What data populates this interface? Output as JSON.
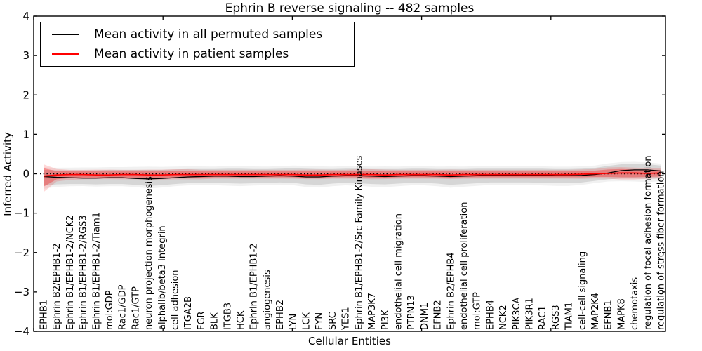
{
  "figure": {
    "title": "Ephrin B reverse signaling -- 482 samples",
    "background_color": "#ffffff",
    "accent_red": "#ff0000",
    "line_black": "#000000"
  },
  "legend": {
    "items": [
      {
        "label": "Mean activity in all permuted samples",
        "color": "#000000"
      },
      {
        "label": "Mean activity in patient samples",
        "color": "#ff0000"
      }
    ]
  },
  "chart_data": {
    "type": "line",
    "title": "Ephrin B reverse signaling -- 482 samples",
    "xlabel": "Cellular Entities",
    "ylabel": "Inferred Activity",
    "ylim": [
      -4,
      4
    ],
    "yticks": [
      4,
      3,
      2,
      1,
      0,
      -1,
      -2,
      -3,
      -4
    ],
    "grid": false,
    "legend_position": "upper left",
    "zero_line": {
      "y": 0,
      "style": "dotted",
      "color": "#000000"
    },
    "categories": [
      "EPHB1",
      "Ephrin B2/EPHB1-2",
      "Ephrin B1/EPHB1-2/NCK2",
      "Ephrin B1/EPHB1-2/RGS3",
      "Ephrin B1/EPHB1-2/Tiam1",
      "mol:GDP",
      "Rac1/GDP",
      "Rac1/GTP",
      "neuron projection morphogenesis",
      "alphaIIb/beta3 Integrin",
      "cell adhesion",
      "ITGA2B",
      "FGR",
      "BLK",
      "ITGB3",
      "HCK",
      "Ephrin B1/EPHB1-2",
      "angiogenesis",
      "EPHB2",
      "LYN",
      "LCK",
      "FYN",
      "SRC",
      "YES1",
      "Ephrin B1/EPHB1-2/Src Family Kinases",
      "MAP3K7",
      "PI3K",
      "endothelial cell migration",
      "PTPN13",
      "DNM1",
      "EFNB2",
      "Ephrin B2/EPHB4",
      "endothelial cell proliferation",
      "mol:GTP",
      "EPHB4",
      "NCK2",
      "PIK3CA",
      "PIK3R1",
      "RAC1",
      "RGS3",
      "TIAM1",
      "cell-cell signaling",
      "MAP2K4",
      "EFNB1",
      "MAPK8",
      "chemotaxis",
      "regulation of focal adhesion formation",
      "regulation of stress fiber formation"
    ],
    "series": [
      {
        "name": "Mean activity in all permuted samples",
        "color": "#000000",
        "values": [
          -0.07,
          -0.09,
          -0.1,
          -0.11,
          -0.11,
          -0.1,
          -0.1,
          -0.12,
          -0.13,
          -0.12,
          -0.1,
          -0.08,
          -0.07,
          -0.06,
          -0.06,
          -0.07,
          -0.07,
          -0.06,
          -0.05,
          -0.06,
          -0.08,
          -0.08,
          -0.06,
          -0.05,
          -0.05,
          -0.06,
          -0.07,
          -0.06,
          -0.05,
          -0.05,
          -0.06,
          -0.07,
          -0.06,
          -0.05,
          -0.04,
          -0.04,
          -0.04,
          -0.04,
          -0.04,
          -0.05,
          -0.05,
          -0.04,
          -0.02,
          0.02,
          0.08,
          0.1,
          0.1,
          0.07
        ]
      },
      {
        "name": "Mean activity in patient samples",
        "color": "#ff0000",
        "values": [
          -0.06,
          -0.03,
          -0.02,
          -0.02,
          -0.03,
          -0.03,
          -0.02,
          -0.02,
          -0.03,
          -0.03,
          -0.02,
          -0.02,
          -0.02,
          -0.02,
          -0.02,
          -0.02,
          -0.02,
          -0.02,
          -0.02,
          -0.02,
          -0.03,
          -0.03,
          -0.02,
          -0.02,
          -0.02,
          -0.02,
          -0.03,
          -0.02,
          -0.02,
          -0.02,
          -0.02,
          -0.03,
          -0.02,
          -0.02,
          -0.02,
          -0.02,
          -0.02,
          -0.02,
          -0.02,
          -0.02,
          -0.02,
          -0.01,
          0.0,
          0.01,
          0.02,
          0.02,
          0.01,
          0.02
        ]
      }
    ],
    "bands": [
      {
        "name": "permuted-samples-range",
        "color": "rgba(0,0,0,0.11)",
        "upper": [
          0.1,
          0.09,
          0.09,
          0.09,
          0.09,
          0.1,
          0.1,
          0.1,
          0.1,
          0.1,
          0.11,
          0.12,
          0.12,
          0.12,
          0.13,
          0.13,
          0.12,
          0.12,
          0.13,
          0.14,
          0.13,
          0.12,
          0.12,
          0.13,
          0.13,
          0.12,
          0.12,
          0.12,
          0.13,
          0.13,
          0.12,
          0.12,
          0.12,
          0.13,
          0.13,
          0.13,
          0.13,
          0.13,
          0.13,
          0.12,
          0.12,
          0.13,
          0.15,
          0.2,
          0.24,
          0.25,
          0.24,
          0.21
        ],
        "lower": [
          -0.3,
          -0.27,
          -0.26,
          -0.26,
          -0.27,
          -0.26,
          -0.26,
          -0.28,
          -0.31,
          -0.29,
          -0.26,
          -0.24,
          -0.23,
          -0.23,
          -0.24,
          -0.25,
          -0.24,
          -0.23,
          -0.22,
          -0.23,
          -0.27,
          -0.28,
          -0.25,
          -0.23,
          -0.24,
          -0.26,
          -0.27,
          -0.25,
          -0.23,
          -0.23,
          -0.25,
          -0.28,
          -0.26,
          -0.24,
          -0.22,
          -0.22,
          -0.22,
          -0.22,
          -0.23,
          -0.24,
          -0.24,
          -0.22,
          -0.18,
          -0.14,
          -0.12,
          -0.12,
          -0.13,
          -0.12
        ]
      },
      {
        "name": "patient-samples-range",
        "color": "rgba(255,0,0,0.30)",
        "upper": [
          0.14,
          0.07,
          0.06,
          0.06,
          0.06,
          0.06,
          0.06,
          0.06,
          0.06,
          0.06,
          0.07,
          0.07,
          0.06,
          0.06,
          0.06,
          0.06,
          0.06,
          0.06,
          0.06,
          0.06,
          0.06,
          0.06,
          0.06,
          0.06,
          0.07,
          0.07,
          0.06,
          0.06,
          0.06,
          0.06,
          0.06,
          0.06,
          0.06,
          0.06,
          0.06,
          0.06,
          0.06,
          0.06,
          0.06,
          0.06,
          0.06,
          0.07,
          0.08,
          0.11,
          0.12,
          0.11,
          0.1,
          0.1
        ],
        "lower": [
          -0.33,
          -0.14,
          -0.11,
          -0.1,
          -0.1,
          -0.1,
          -0.1,
          -0.1,
          -0.11,
          -0.11,
          -0.1,
          -0.1,
          -0.1,
          -0.09,
          -0.09,
          -0.09,
          -0.09,
          -0.09,
          -0.09,
          -0.09,
          -0.1,
          -0.1,
          -0.09,
          -0.09,
          -0.09,
          -0.1,
          -0.1,
          -0.09,
          -0.09,
          -0.09,
          -0.09,
          -0.1,
          -0.09,
          -0.09,
          -0.09,
          -0.09,
          -0.09,
          -0.09,
          -0.09,
          -0.09,
          -0.09,
          -0.09,
          -0.08,
          -0.08,
          -0.09,
          -0.09,
          -0.08,
          -0.07
        ]
      }
    ]
  }
}
